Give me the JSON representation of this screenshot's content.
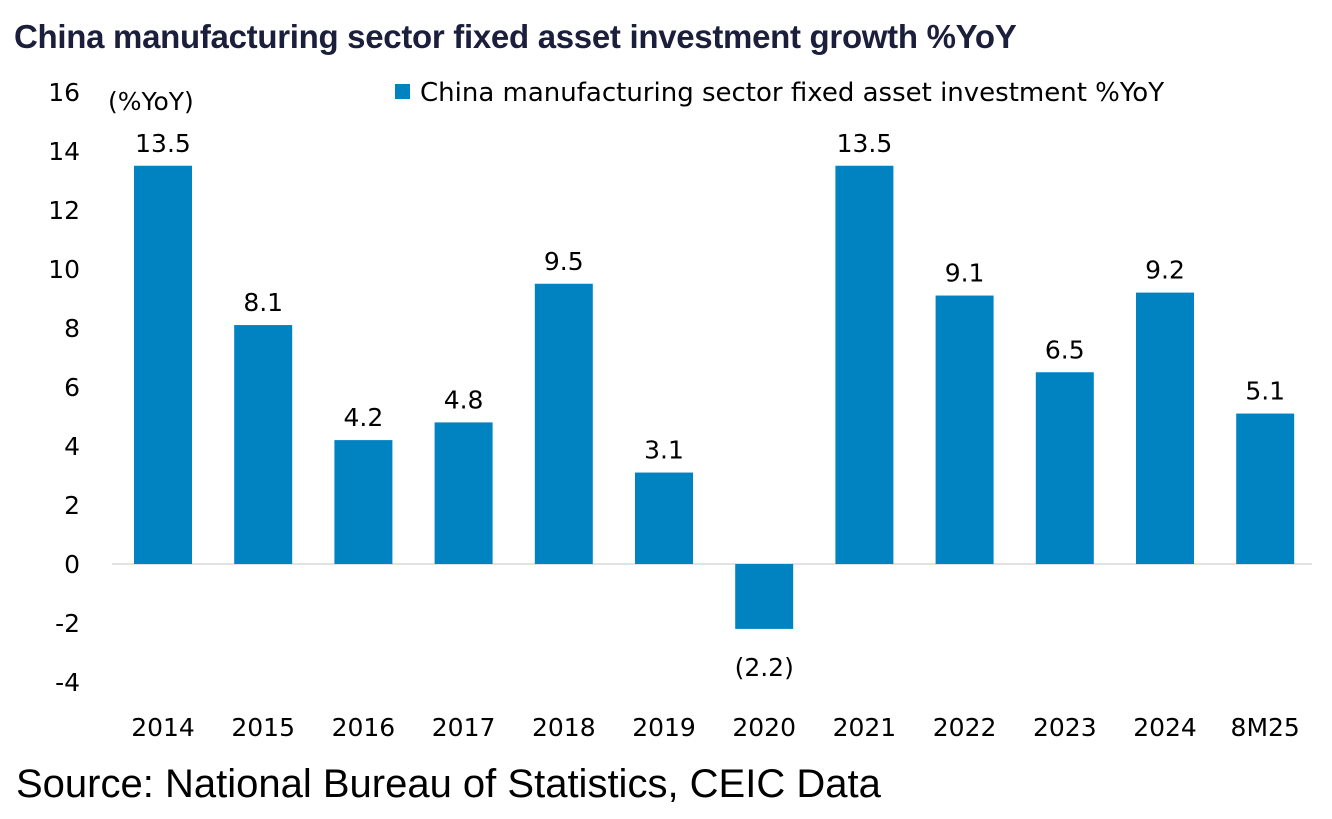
{
  "chart_data": {
    "type": "bar",
    "title": "China manufacturing sector fixed asset investment growth %YoY",
    "ylabel": "(%YoY)",
    "xlabel": "",
    "categories": [
      "2014",
      "2015",
      "2016",
      "2017",
      "2018",
      "2019",
      "2020",
      "2021",
      "2022",
      "2023",
      "2024",
      "8M25"
    ],
    "series": [
      {
        "name": "China manufacturing sector fixed asset investment %YoY",
        "values": [
          13.5,
          8.1,
          4.2,
          4.8,
          9.5,
          3.1,
          -2.2,
          13.5,
          9.1,
          6.5,
          9.2,
          5.1
        ],
        "labels": [
          "13.5",
          "8.1",
          "4.2",
          "4.8",
          "9.5",
          "3.1",
          "(2.2)",
          "13.5",
          "9.1",
          "6.5",
          "9.2",
          "5.1"
        ],
        "color": "#0083c0"
      }
    ],
    "ylim": [
      -4,
      16
    ],
    "yticks": [
      "16",
      "14",
      "12",
      "10",
      "8",
      "6",
      "4",
      "2",
      "0",
      "-2",
      "-4"
    ],
    "ytick_values": [
      16,
      14,
      12,
      10,
      8,
      6,
      4,
      2,
      0,
      -2,
      -4
    ],
    "grid": false,
    "legend": "top-right"
  },
  "source": "Source: National Bureau of Statistics, CEIC Data"
}
